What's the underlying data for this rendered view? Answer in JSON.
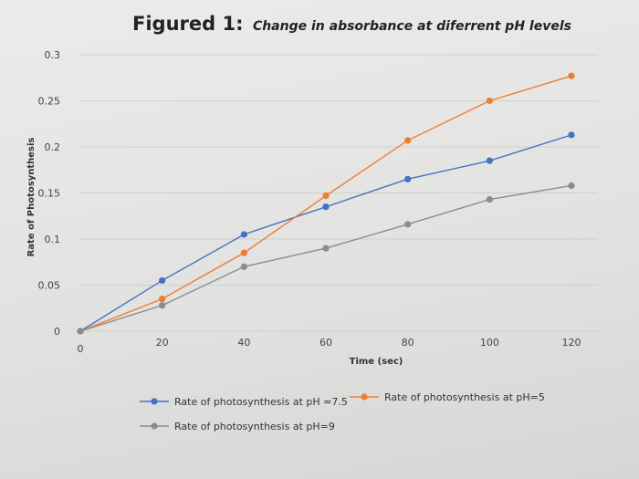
{
  "chart_data": {
    "type": "line",
    "title": "Figured 1:",
    "subtitle": "Change in absorbance at diferrent pH levels",
    "xlabel": "Time (sec)",
    "ylabel": "Rate of Photosynthesis",
    "x": [
      0,
      20,
      40,
      60,
      80,
      100,
      120
    ],
    "xticks": [
      "0",
      "20",
      "40",
      "60",
      "80",
      "100",
      "120"
    ],
    "ylim": [
      0,
      0.3
    ],
    "yticks": [
      "0",
      "0.05",
      "0.1",
      "0.15",
      "0.2",
      "0.25",
      "0.3"
    ],
    "grid": "horizontal",
    "legend_position": "bottom",
    "series": [
      {
        "name": "Rate of photosynthesis at pH =7.5",
        "color": "#4472c4",
        "values": [
          0,
          0.055,
          0.105,
          0.135,
          0.165,
          0.185,
          0.213
        ]
      },
      {
        "name": "Rate of photosynthesis at pH=5",
        "color": "#ed7d31",
        "values": [
          0,
          0.035,
          0.085,
          0.147,
          0.207,
          0.25,
          0.277
        ]
      },
      {
        "name": "Rate of photosynthesis at pH=9",
        "color": "#8c8c8c",
        "values": [
          0,
          0.028,
          0.07,
          0.09,
          0.116,
          0.143,
          0.158
        ]
      }
    ]
  }
}
